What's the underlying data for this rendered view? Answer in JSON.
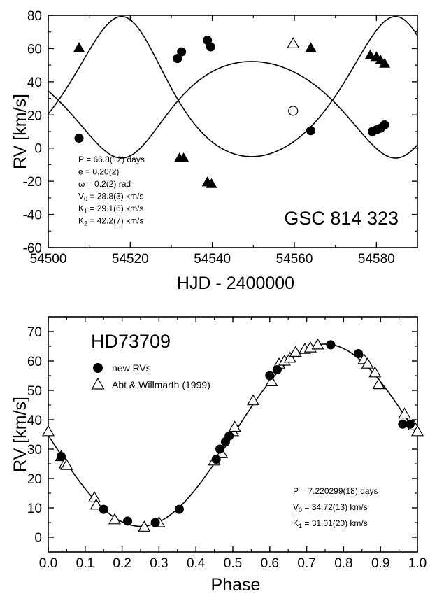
{
  "colors": {
    "ink": "#000000",
    "background": "#ffffff"
  },
  "chart_data": [
    {
      "type": "scatter",
      "title": "GSC 814 323",
      "xlabel": "HJD - 2400000",
      "ylabel": "RV [km/s]",
      "xlim": [
        54500,
        54590
      ],
      "ylim": [
        -60,
        80
      ],
      "xticks": [
        54500,
        54520,
        54540,
        54560,
        54580
      ],
      "yticks": [
        -60,
        -40,
        -20,
        0,
        20,
        40,
        60,
        80
      ],
      "grid": false,
      "series": [
        {
          "marker": "filled-triangle",
          "x": [
            54507.5,
            54532,
            54533,
            54538.8,
            54539.8,
            54564,
            54578.5,
            54580,
            54581,
            54582
          ],
          "y": [
            60.5,
            -6,
            -6,
            -20.5,
            -21.5,
            60.5,
            56,
            55,
            53,
            51
          ]
        },
        {
          "marker": "filled-circle",
          "x": [
            54507.5,
            54531.5,
            54532.5,
            54538.8,
            54539.6,
            54564,
            54579,
            54580,
            54581,
            54582
          ],
          "y": [
            6,
            54,
            58,
            65,
            61,
            10.5,
            10,
            11,
            12,
            14
          ]
        },
        {
          "marker": "open-triangle",
          "x": [
            54559.7
          ],
          "y": [
            63
          ]
        },
        {
          "marker": "open-circle",
          "x": [
            54559.7
          ],
          "y": [
            22.5
          ]
        }
      ],
      "orbit_model": {
        "period": 66.8,
        "e": 0.2,
        "omega": 0.2,
        "v0": 28.8,
        "k1": 29.1,
        "k2": 42.2
      },
      "annotations": [
        {
          "parts": [
            {
              "t": "P = 66.8(12) days"
            }
          ]
        },
        {
          "parts": [
            {
              "t": "e = 0.20(2)"
            }
          ]
        },
        {
          "parts": [
            {
              "t": "ω = 0.2(2) rad"
            }
          ]
        },
        {
          "parts": [
            {
              "t": "V"
            },
            {
              "t": "0",
              "sub": true
            },
            {
              "t": " = 28.8(3) km/s"
            }
          ]
        },
        {
          "parts": [
            {
              "t": "K"
            },
            {
              "t": "1",
              "sub": true
            },
            {
              "t": " = 29.1(6) km/s"
            }
          ]
        },
        {
          "parts": [
            {
              "t": "K"
            },
            {
              "t": "2",
              "sub": true
            },
            {
              "t": " = 42.2(7) km/s"
            }
          ]
        }
      ]
    },
    {
      "type": "scatter",
      "title": "HD73709",
      "xlabel": "Phase",
      "ylabel": "RV [km/s]",
      "xlim": [
        0.0,
        1.0
      ],
      "ylim": [
        -5,
        75
      ],
      "xticks": [
        0.0,
        0.1,
        0.2,
        0.3,
        0.4,
        0.5,
        0.6,
        0.7,
        0.8,
        0.9,
        1.0
      ],
      "xtick_labels": [
        "0.0",
        "0.1",
        "0.2",
        "0.3",
        "0.4",
        "0.5",
        "0.6",
        "0.7",
        "0.8",
        "0.9",
        "1.0"
      ],
      "yticks": [
        0,
        10,
        20,
        30,
        40,
        50,
        60,
        70
      ],
      "grid": false,
      "series": [
        {
          "name": "new RVs",
          "marker": "filled-circle",
          "x": [
            0.035,
            0.15,
            0.215,
            0.29,
            0.355,
            0.455,
            0.465,
            0.48,
            0.49,
            0.6,
            0.62,
            0.765,
            0.84,
            0.96,
            0.98
          ],
          "y": [
            27.5,
            9.5,
            5.5,
            5,
            9.5,
            26.5,
            30,
            32.5,
            34.5,
            55,
            57,
            65.5,
            62.5,
            38.5,
            38.5
          ]
        },
        {
          "name": "Abt & Willmarth (1999)",
          "marker": "open-triangle",
          "x": [
            0.0,
            0.035,
            0.045,
            0.05,
            0.125,
            0.13,
            0.18,
            0.26,
            0.3,
            0.45,
            0.47,
            0.5,
            0.505,
            0.555,
            0.605,
            0.625,
            0.64,
            0.655,
            0.67,
            0.695,
            0.71,
            0.73,
            0.855,
            0.865,
            0.885,
            0.895,
            0.965,
            0.99,
            1.0
          ],
          "y": [
            36,
            27.5,
            25,
            24.5,
            13.5,
            11,
            6,
            3.5,
            5,
            26,
            28.5,
            36,
            37.5,
            46.5,
            53,
            59,
            60,
            61,
            63,
            64,
            64.5,
            65.5,
            60.5,
            59,
            56,
            52,
            42,
            38,
            36
          ]
        }
      ],
      "orbit_model": {
        "period": 7.220299,
        "e": 0.0,
        "v0": 34.72,
        "k1": 31.01,
        "peak_phase": 0.75
      },
      "annotations": [
        {
          "parts": [
            {
              "t": "P = 7.220299(18) days"
            }
          ]
        },
        {
          "parts": [
            {
              "t": "V"
            },
            {
              "t": "0",
              "sub": true
            },
            {
              "t": " = 34.72(13) km/s"
            }
          ]
        },
        {
          "parts": [
            {
              "t": "K"
            },
            {
              "t": "1",
              "sub": true
            },
            {
              "t": " = 31.01(20) km/s"
            }
          ]
        }
      ],
      "legend_position": "top-left"
    }
  ]
}
